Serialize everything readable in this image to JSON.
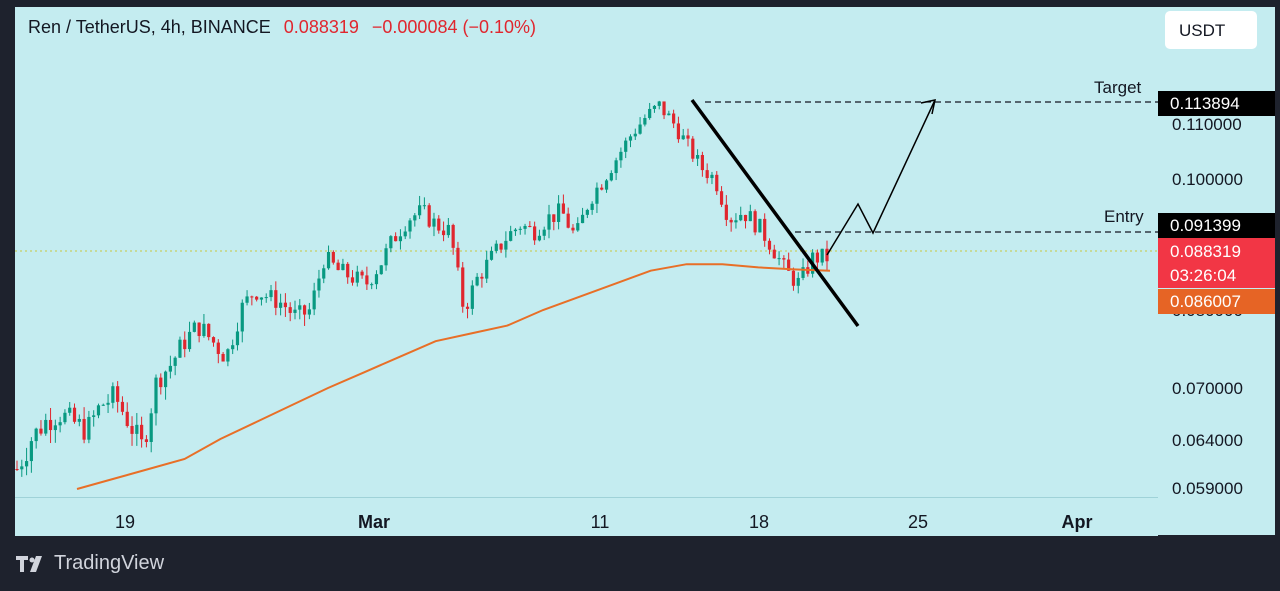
{
  "header": {
    "symbol": "Ren / TetherUS, 4h, BINANCE",
    "price": "0.088319",
    "change": "−0.000084 (−0.10%)"
  },
  "currency_button": "USDT",
  "footer": {
    "brand": "TradingView",
    "logo_icon": "tradingview-logo-icon"
  },
  "colors": {
    "background": "#c4ecf0",
    "up": "#089981",
    "down": "#e0262e",
    "ma": "#e86f27",
    "current_price": "#f23645",
    "ma_label": "#e66425"
  },
  "chart_data": {
    "type": "candlestick",
    "title": "Ren / TetherUS, 4h, BINANCE",
    "x_ticks": [
      {
        "label": "19",
        "bold": false
      },
      {
        "label": "Mar",
        "bold": true
      },
      {
        "label": "11",
        "bold": false
      },
      {
        "label": "18",
        "bold": false
      },
      {
        "label": "25",
        "bold": false
      },
      {
        "label": "Apr",
        "bold": true
      }
    ],
    "y_ticks": [
      "0.110000",
      "0.100000",
      "0.080000",
      "0.070000",
      "0.064000",
      "0.059000"
    ],
    "price_labels": {
      "target": "0.113894",
      "entry": "0.091399",
      "current": "0.088319",
      "countdown": "03:26:04",
      "moving_average": "0.086007"
    },
    "annotations": {
      "target": "Target",
      "entry": "Entry"
    },
    "ohlc_close_path": [
      0.061,
      0.064,
      0.066,
      0.067,
      0.066,
      0.065,
      0.068,
      0.069,
      0.066,
      0.063,
      0.071,
      0.073,
      0.076,
      0.078,
      0.076,
      0.074,
      0.08,
      0.083,
      0.082,
      0.081,
      0.079,
      0.08,
      0.088,
      0.086,
      0.085,
      0.084,
      0.087,
      0.091,
      0.094,
      0.095,
      0.093,
      0.092,
      0.08,
      0.085,
      0.088,
      0.091,
      0.093,
      0.092,
      0.094,
      0.095,
      0.091,
      0.097,
      0.1,
      0.104,
      0.108,
      0.111,
      0.113,
      0.11,
      0.106,
      0.102,
      0.1,
      0.094,
      0.095,
      0.093,
      0.09,
      0.086,
      0.084,
      0.088,
      0.088
    ],
    "ma_path": [
      0.059,
      0.06,
      0.061,
      0.062,
      0.064,
      0.066,
      0.068,
      0.07,
      0.072,
      0.074,
      0.076,
      0.077,
      0.078,
      0.08,
      0.082,
      0.084,
      0.086,
      0.087,
      0.087,
      0.0865,
      0.0862,
      0.086
    ]
  }
}
